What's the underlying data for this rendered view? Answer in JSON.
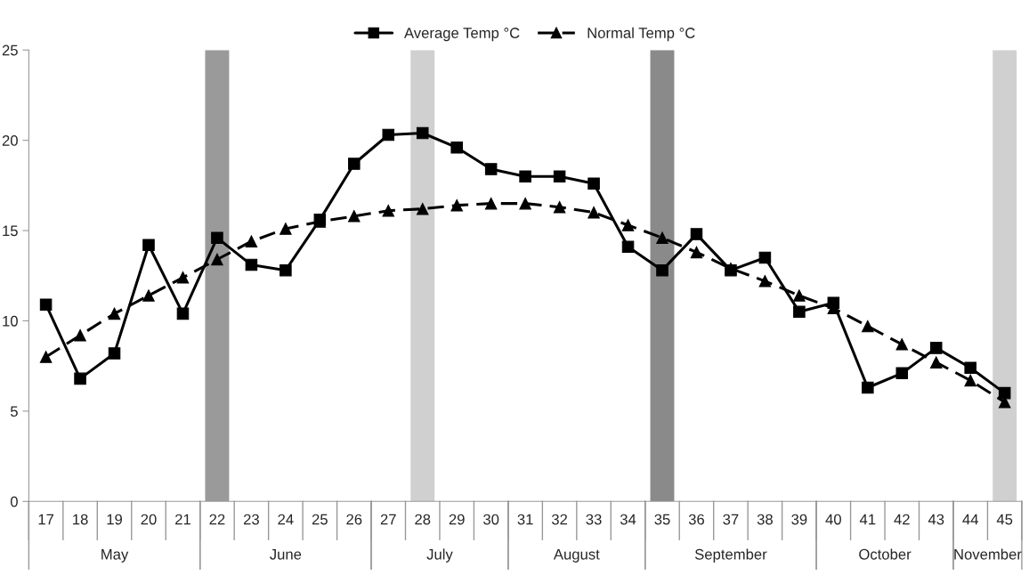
{
  "chart_data": {
    "type": "line",
    "categories": [
      "17",
      "18",
      "19",
      "20",
      "21",
      "22",
      "23",
      "24",
      "25",
      "26",
      "27",
      "28",
      "29",
      "30",
      "31",
      "32",
      "33",
      "34",
      "35",
      "36",
      "37",
      "38",
      "39",
      "40",
      "41",
      "42",
      "43",
      "44",
      "45"
    ],
    "series": [
      {
        "name": "Average Temp °C",
        "color": "#000000",
        "marker": "square",
        "line_style": "solid",
        "values": [
          10.9,
          6.8,
          8.2,
          14.2,
          10.4,
          14.6,
          13.1,
          12.8,
          15.6,
          18.7,
          20.3,
          20.4,
          19.6,
          18.4,
          18.0,
          18.0,
          17.6,
          14.1,
          12.8,
          14.8,
          12.8,
          13.5,
          10.5,
          11.0,
          6.3,
          7.1,
          8.5,
          7.4,
          6.0
        ]
      },
      {
        "name": "Normal Temp °C",
        "color": "#000000",
        "marker": "triangle",
        "line_style": "dashed",
        "values": [
          8.0,
          9.2,
          10.4,
          11.4,
          12.4,
          13.4,
          14.4,
          15.1,
          15.5,
          15.8,
          16.1,
          16.2,
          16.4,
          16.5,
          16.5,
          16.3,
          16.0,
          15.3,
          14.6,
          13.8,
          12.9,
          12.2,
          11.4,
          10.7,
          9.7,
          8.7,
          7.7,
          6.7,
          5.5
        ]
      }
    ],
    "ylim": [
      0,
      25
    ],
    "yticks": [
      0,
      5,
      10,
      15,
      20,
      25
    ],
    "grid": false,
    "legend": "top",
    "bands": [
      {
        "axis": "x",
        "from": "22",
        "to": "22",
        "color": "#9a9a9a"
      },
      {
        "axis": "x",
        "from": "28",
        "to": "28",
        "color": "#d0d0d0"
      },
      {
        "axis": "x",
        "from": "35",
        "to": "35",
        "color": "#8a8a8a"
      },
      {
        "axis": "x",
        "from": "45",
        "to": "45",
        "color": "#d0d0d0"
      }
    ],
    "annotations": [
      "May",
      "June",
      "July",
      "August",
      "September",
      "October",
      "November"
    ]
  }
}
